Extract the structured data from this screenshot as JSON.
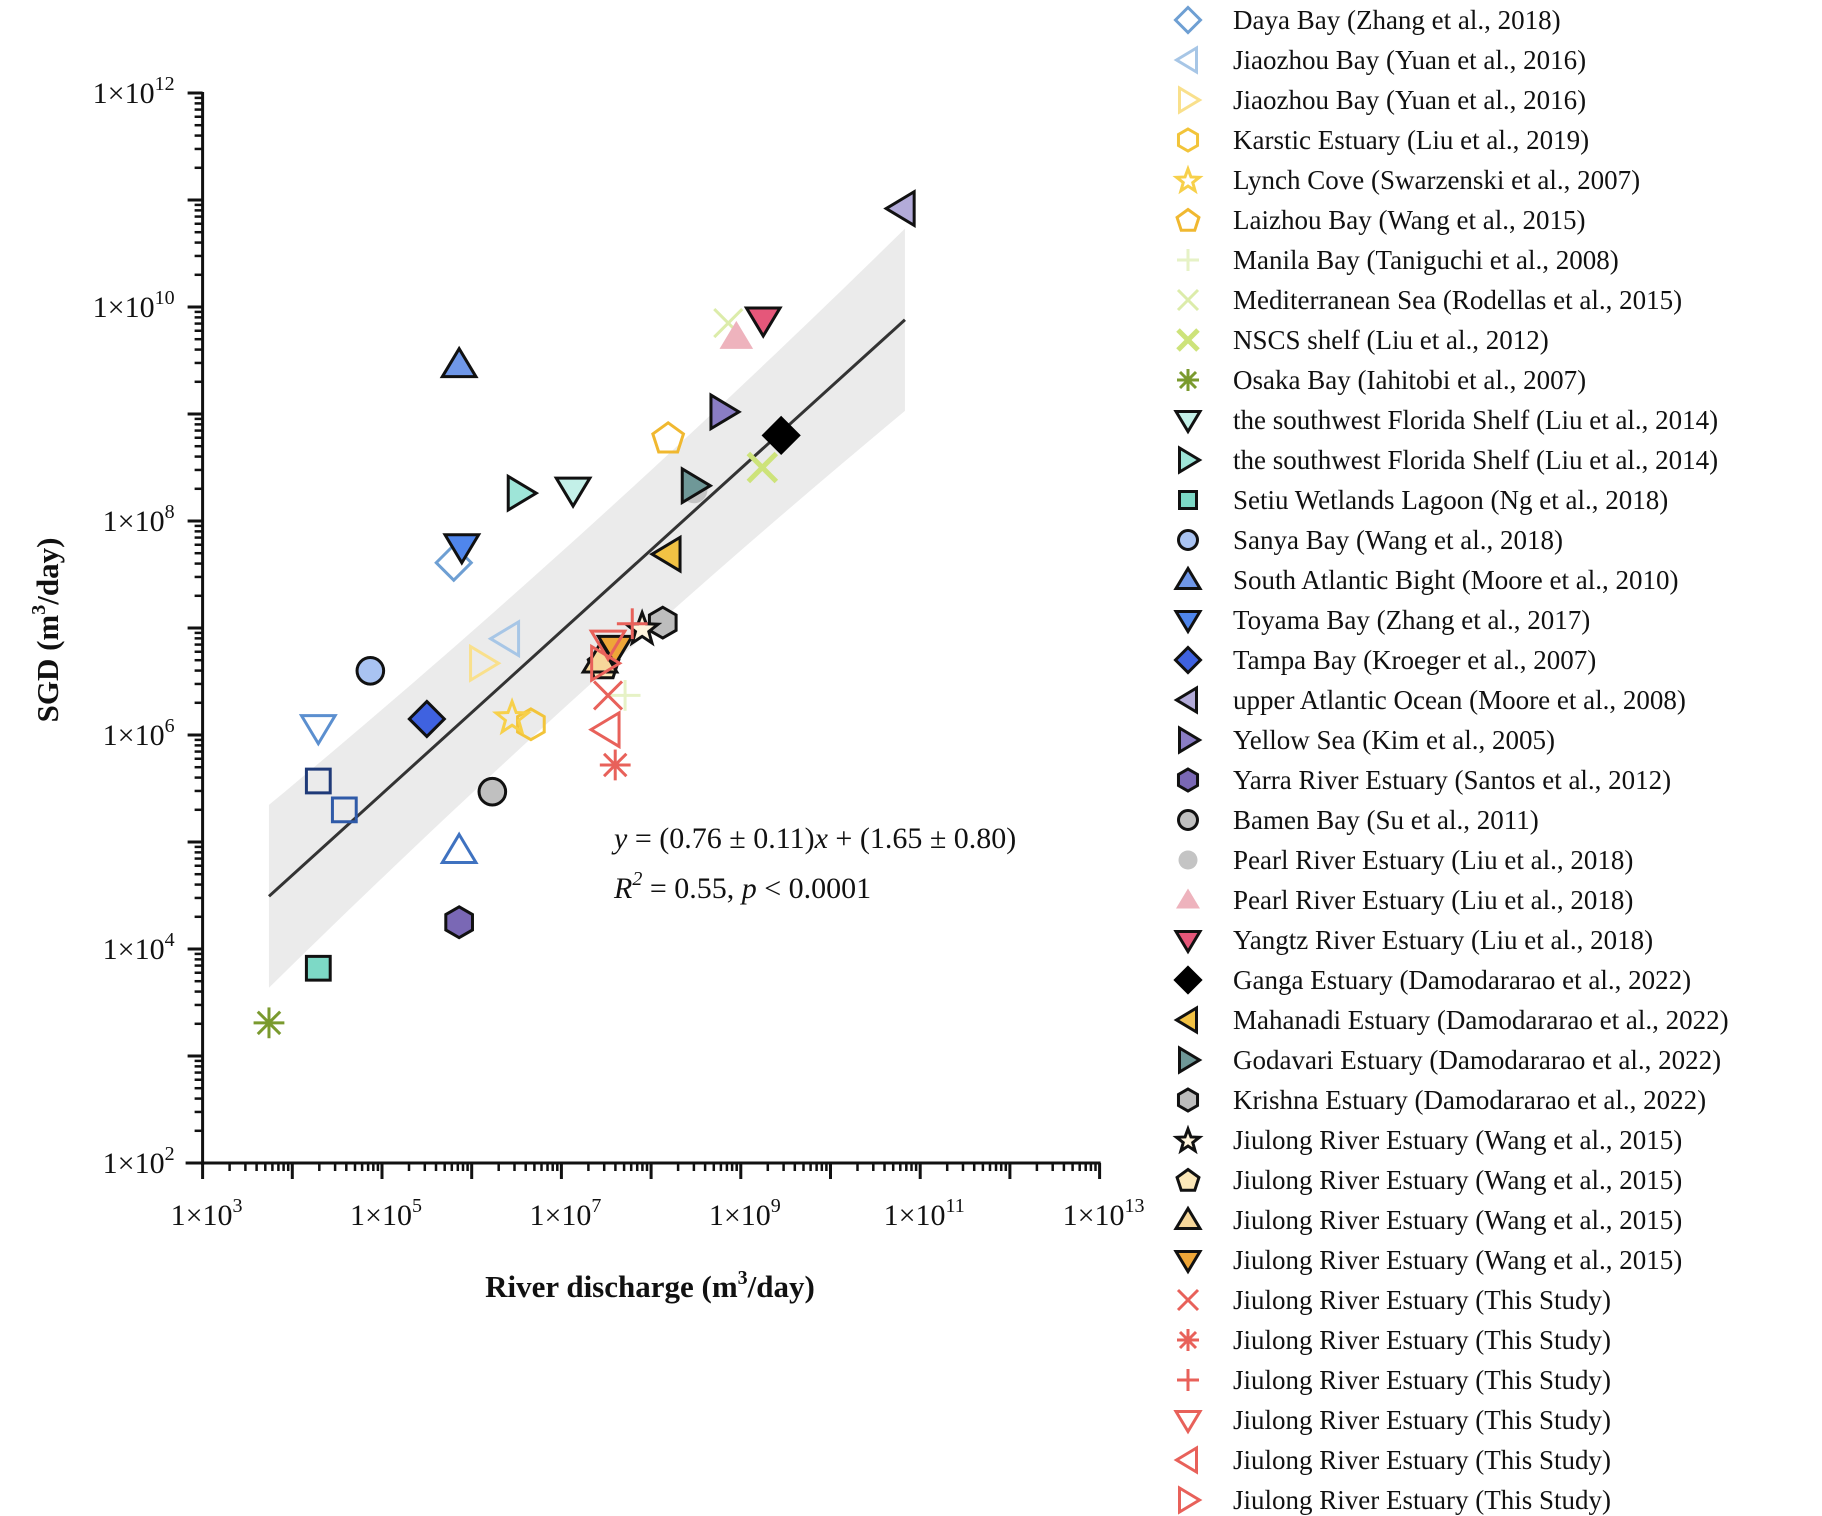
{
  "chart_data": {
    "type": "scatter",
    "title": "",
    "xlabel": "River discharge (m³/day)",
    "ylabel": "SGD (m³/day)",
    "xscale": "log",
    "yscale": "log",
    "xlim": [
      1000,
      10000000000000
    ],
    "ylim": [
      100,
      1000000000000
    ],
    "grid": false,
    "legend_position": "right",
    "x_ticks": [
      {
        "base": "1×10",
        "exp": "3",
        "value": 1000
      },
      {
        "base": "1×10",
        "exp": "5",
        "value": 100000
      },
      {
        "base": "1×10",
        "exp": "7",
        "value": 10000000
      },
      {
        "base": "1×10",
        "exp": "9",
        "value": 1000000000
      },
      {
        "base": "1×10",
        "exp": "11",
        "value": 100000000000
      },
      {
        "base": "1×10",
        "exp": "13",
        "value": 10000000000000
      }
    ],
    "y_ticks": [
      {
        "base": "1×10",
        "exp": "2",
        "value": 100
      },
      {
        "base": "1×10",
        "exp": "4",
        "value": 10000
      },
      {
        "base": "1×10",
        "exp": "6",
        "value": 1000000
      },
      {
        "base": "1×10",
        "exp": "8",
        "value": 100000000
      },
      {
        "base": "1×10",
        "exp": "10",
        "value": 10000000000
      },
      {
        "base": "1×10",
        "exp": "12",
        "value": 1000000000000
      }
    ],
    "regression": {
      "label_line1_parts": [
        "y",
        " = (0.76 ± 0.11)",
        "x",
        " + (1.65 ± 0.80)"
      ],
      "label_line2_parts": [
        "R",
        "2",
        " = 0.55, ",
        "p",
        " < 0.0001"
      ],
      "slope": 0.76,
      "slope_err": 0.11,
      "intercept": 1.65,
      "intercept_err": 0.8,
      "r2": 0.55,
      "p": "< 0.0001",
      "log_x_range": [
        3.74,
        10.83
      ],
      "band_color": "#ebebeb",
      "line_color": "#333333"
    },
    "series": [
      {
        "name": "Daya Bay (Zhang et al., 2018)",
        "marker": "diamond",
        "fill": "none",
        "stroke": "#6e9fd3",
        "points": [
          [
            5.8,
            7.61
          ]
        ]
      },
      {
        "name": "Jiaozhou Bay (Yuan et al., 2016)",
        "marker": "triangle-left",
        "fill": "none",
        "stroke": "#a7c6e6",
        "points": [
          [
            6.39,
            6.9
          ]
        ]
      },
      {
        "name": "Jiaozhou Bay (Yuan et al., 2016)",
        "marker": "triangle-right",
        "fill": "none",
        "stroke": "#f9e08c",
        "points": [
          [
            6.12,
            6.67
          ]
        ]
      },
      {
        "name": "Karstic Estuary (Liu et al., 2019)",
        "marker": "hexagon",
        "fill": "none",
        "stroke": "#f2c43a",
        "points": [
          [
            6.66,
            6.1
          ]
        ]
      },
      {
        "name": "Lynch Cove (Swarzenski et al., 2007)",
        "marker": "star",
        "fill": "none",
        "stroke": "#f7d04a",
        "points": [
          [
            6.45,
            6.17
          ]
        ]
      },
      {
        "name": "Laizhou Bay (Wang et al., 2015)",
        "marker": "pentagon",
        "fill": "none",
        "stroke": "#f0b830",
        "points": [
          [
            8.19,
            8.78
          ]
        ]
      },
      {
        "name": "Manila Bay (Taniguchi et al., 2008)",
        "marker": "plus",
        "fill": "none",
        "stroke": "#e6f2c6",
        "points": [
          [
            7.71,
            6.37
          ]
        ]
      },
      {
        "name": "Mediterranean Sea (Rodellas et al., 2015)",
        "marker": "x",
        "fill": "none",
        "stroke": "#dcecaa",
        "points": [
          [
            8.86,
            9.85
          ]
        ]
      },
      {
        "name": "NSCS shelf (Liu et al., 2012)",
        "marker": "x-bold",
        "fill": "none",
        "stroke": "#cde37a",
        "points": [
          [
            9.24,
            8.5
          ]
        ]
      },
      {
        "name": "Osaka Bay (Iahitobi et al., 2007)",
        "marker": "asterisk",
        "fill": "none",
        "stroke": "#7a9a2e",
        "points": [
          [
            3.74,
            3.31
          ]
        ]
      },
      {
        "name": "the southwest Florida Shelf (Liu et al., 2014)",
        "marker": "triangle-down",
        "fill": "#c3f0e8",
        "stroke": "#111111",
        "points": [
          [
            7.13,
            8.29
          ]
        ]
      },
      {
        "name": "the southwest Florida Shelf (Liu et al., 2014)",
        "marker": "triangle-right",
        "fill": "#9ee5d8",
        "stroke": "#111111",
        "points": [
          [
            6.54,
            8.26
          ]
        ]
      },
      {
        "name": "Setiu Wetlands Lagoon (Ng et al., 2018)",
        "marker": "square",
        "fill": "#7dd9c6",
        "stroke": "#111111",
        "points": [
          [
            4.29,
            3.82
          ]
        ]
      },
      {
        "name": "Sanya Bay (Wang et al., 2018)",
        "marker": "circle",
        "fill": "#a9c3f2",
        "stroke": "#111111",
        "points": [
          [
            4.87,
            6.6
          ]
        ]
      },
      {
        "name": "South Atlantic Bight (Moore et al., 2010)",
        "marker": "triangle-up",
        "fill": "#6f97e8",
        "stroke": "#111111",
        "points": [
          [
            5.86,
            9.46
          ]
        ]
      },
      {
        "name": "Toyama Bay (Zhang et al., 2017)",
        "marker": "triangle-down",
        "fill": "#4f86ec",
        "stroke": "#111111",
        "points": [
          [
            5.89,
            7.76
          ]
        ]
      },
      {
        "name": "Tampa Bay (Kroeger et al., 2007)",
        "marker": "diamond",
        "fill": "#3f62e0",
        "stroke": "#111111",
        "points": [
          [
            5.5,
            6.15
          ]
        ]
      },
      {
        "name": "upper Atlantic Ocean (Moore et al., 2008)",
        "marker": "triangle-left",
        "fill": "#b3abd9",
        "stroke": "#111111",
        "points": [
          [
            10.8,
            10.92
          ]
        ]
      },
      {
        "name": "Yellow Sea (Kim et al., 2005)",
        "marker": "triangle-right",
        "fill": "#8a7dc4",
        "stroke": "#111111",
        "points": [
          [
            8.8,
            9.02
          ]
        ]
      },
      {
        "name": "Yarra River Estuary (Santos et al., 2012)",
        "marker": "hexagon",
        "fill": "#7a68b5",
        "stroke": "#111111",
        "points": [
          [
            5.86,
            4.25
          ]
        ]
      },
      {
        "name": "Bamen Bay (Su et al., 2011)",
        "marker": "circle",
        "fill": "#c0c0c0",
        "stroke": "#111111",
        "points": [
          [
            6.23,
            5.47
          ]
        ]
      },
      {
        "name": "Pearl River Estuary (Liu et al., 2018)",
        "marker": "circle",
        "fill": "#c4c4c4",
        "stroke": "none",
        "points": [
          [
            8.48,
            8.29
          ]
        ]
      },
      {
        "name": "Pearl River Estuary (Liu et al., 2018)",
        "marker": "triangle-up",
        "fill": "#eeb3bd",
        "stroke": "none",
        "points": [
          [
            8.95,
            9.72
          ]
        ]
      },
      {
        "name": "Yangtz River Estuary (Liu et al., 2018)",
        "marker": "triangle-down",
        "fill": "#e5577a",
        "stroke": "#111111",
        "points": [
          [
            9.25,
            9.88
          ]
        ]
      },
      {
        "name": "Ganga Estuary (Damodararao et al., 2022)",
        "marker": "diamond",
        "fill": "#000000",
        "stroke": "#000000",
        "points": [
          [
            9.45,
            8.8
          ]
        ]
      },
      {
        "name": "Mahanadi Estuary (Damodararao et al., 2022)",
        "marker": "triangle-left",
        "fill": "#f2c244",
        "stroke": "#111111",
        "points": [
          [
            8.19,
            7.69
          ]
        ]
      },
      {
        "name": "Godavari Estuary (Damodararao et al., 2022)",
        "marker": "triangle-right",
        "fill": "#6f9898",
        "stroke": "#111111",
        "points": [
          [
            8.48,
            8.33
          ]
        ]
      },
      {
        "name": "Krishna Estuary (Damodararao et al., 2022)",
        "marker": "hexagon",
        "fill": "#bdbdbd",
        "stroke": "#111111",
        "points": [
          [
            8.13,
            7.05
          ]
        ]
      },
      {
        "name": "Jiulong River Estuary (Wang et al., 2015)",
        "marker": "star",
        "fill": "#fff4dc",
        "stroke": "#111111",
        "points": [
          [
            7.9,
            7.0
          ]
        ]
      },
      {
        "name": "Jiulong River Estuary (Wang et al., 2015)",
        "marker": "pentagon",
        "fill": "#fbe7b8",
        "stroke": "#111111",
        "points": [
          [
            7.47,
            6.67
          ]
        ]
      },
      {
        "name": "Jiulong River Estuary (Wang et al., 2015)",
        "marker": "triangle-up",
        "fill": "#f6d79a",
        "stroke": "#111111",
        "points": [
          [
            7.43,
            6.7
          ]
        ]
      },
      {
        "name": "Jiulong River Estuary (Wang et al., 2015)",
        "marker": "triangle-down",
        "fill": "#eea638",
        "stroke": "#111111",
        "points": [
          [
            7.6,
            6.81
          ]
        ]
      },
      {
        "name": "Jiulong River Estuary (This Study)",
        "marker": "x",
        "fill": "none",
        "stroke": "#e8615a",
        "points": [
          [
            7.52,
            6.37
          ]
        ]
      },
      {
        "name": "Jiulong River Estuary (This Study)",
        "marker": "asterisk",
        "fill": "none",
        "stroke": "#e8615a",
        "points": [
          [
            7.6,
            5.72
          ]
        ]
      },
      {
        "name": "Jiulong River Estuary (This Study)",
        "marker": "plus",
        "fill": "none",
        "stroke": "#e8615a",
        "points": [
          [
            7.79,
            7.04
          ]
        ]
      },
      {
        "name": "Jiulong River Estuary (This Study)",
        "marker": "triangle-down",
        "fill": "none",
        "stroke": "#e8615a",
        "points": [
          [
            7.52,
            6.86
          ]
        ]
      },
      {
        "name": "Jiulong River Estuary (This Study)",
        "marker": "triangle-left",
        "fill": "none",
        "stroke": "#e8615a",
        "points": [
          [
            7.51,
            6.05
          ]
        ]
      },
      {
        "name": "Jiulong River Estuary (This Study)",
        "marker": "triangle-right",
        "fill": "none",
        "stroke": "#e8615a",
        "points": [
          [
            7.47,
            6.67
          ]
        ]
      }
    ],
    "unlabeled_points": [
      {
        "marker": "triangle-down",
        "fill": "none",
        "stroke": "#5b8fcf",
        "point": [
          4.29,
          6.07
        ]
      },
      {
        "marker": "square",
        "fill": "none",
        "stroke": "#1f3a78",
        "point": [
          4.29,
          5.57
        ]
      },
      {
        "marker": "square",
        "fill": "none",
        "stroke": "#2f5aa8",
        "point": [
          4.58,
          5.3
        ]
      },
      {
        "marker": "triangle-up",
        "fill": "none",
        "stroke": "#3f72c0",
        "point": [
          5.86,
          4.92
        ]
      }
    ],
    "point_units": "log10 (x: river discharge, y: SGD)"
  }
}
